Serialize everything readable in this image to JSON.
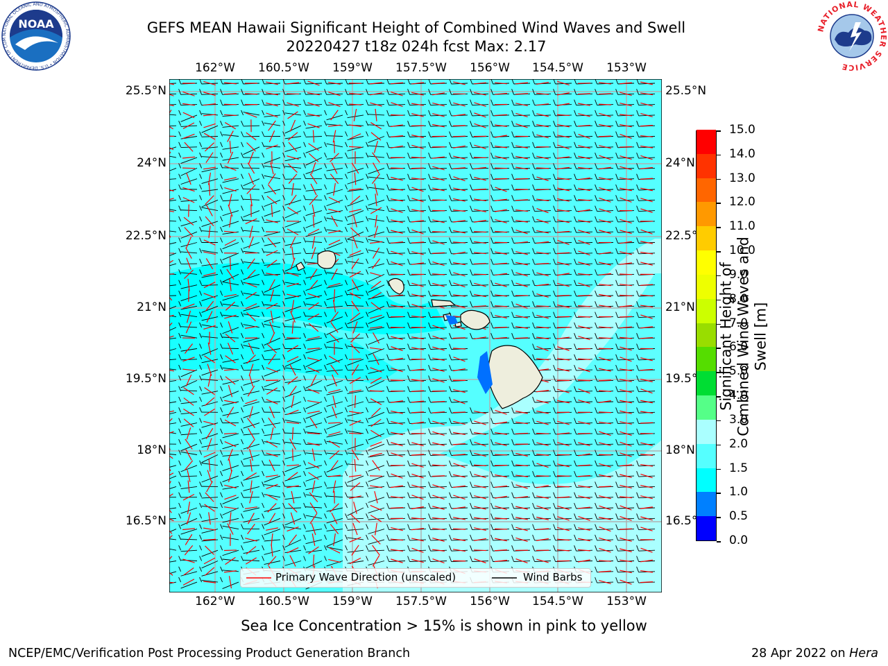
{
  "title_line1": "GEFS MEAN Hawaii Significant Height of Combined Wind Waves and Swell",
  "title_line2": "20220427 t18z 024h fcst   Max: 2.17",
  "lon_ticks": [
    "162°W",
    "160.5°W",
    "159°W",
    "157.5°W",
    "156°W",
    "154.5°W",
    "153°W"
  ],
  "lat_ticks": [
    "25.5°N",
    "24°N",
    "22.5°N",
    "21°N",
    "19.5°N",
    "18°N",
    "16.5°N"
  ],
  "map": {
    "lon_range": [
      -163.0,
      -152.7
    ],
    "lat_range": [
      15.3,
      25.8
    ],
    "ocean_color": "#55ffff",
    "land_color": "#eeeedd",
    "grid_color": "#b0b0b0"
  },
  "colorbar": {
    "title": "Significant Height of Combined Wind Waves and Swell [m]",
    "levels": [
      "0.0",
      "0.5",
      "1.0",
      "1.5",
      "2.0",
      "3.0",
      "4.0",
      "5.0",
      "6.0",
      "7.0",
      "8.0",
      "9.0",
      "10.0",
      "11.0",
      "12.0",
      "13.0",
      "14.0",
      "15.0"
    ],
    "colors": [
      "#0000ff",
      "#0080ff",
      "#00ffff",
      "#55ffff",
      "#aaffff",
      "#55ff88",
      "#00dd33",
      "#55dd00",
      "#99dd00",
      "#ccff00",
      "#eeff00",
      "#ffff00",
      "#ffcc00",
      "#ff9900",
      "#ff6600",
      "#ff3300",
      "#ff0000"
    ]
  },
  "legend": {
    "wave_label": "Primary Wave Direction (unscaled)",
    "wave_color": "#ff0000",
    "barb_label": "Wind Barbs",
    "barb_color": "#000000"
  },
  "subtitle": "Sea Ice Concentration > 15% is shown in pink to yellow",
  "footer_left": "NCEP/EMC/Verification Post Processing Product Generation Branch",
  "footer_right_prefix": "28 Apr 2022 on ",
  "footer_right_host": "Hera",
  "logos": {
    "noaa_text": "NOAA",
    "noaa_ring": "NATIONAL OCEANIC AND ATMOSPHERIC ADMINISTRATION • U.S. DEPARTMENT OF COMMERCE",
    "nws_ring": "NATIONAL WEATHER SERVICE"
  }
}
